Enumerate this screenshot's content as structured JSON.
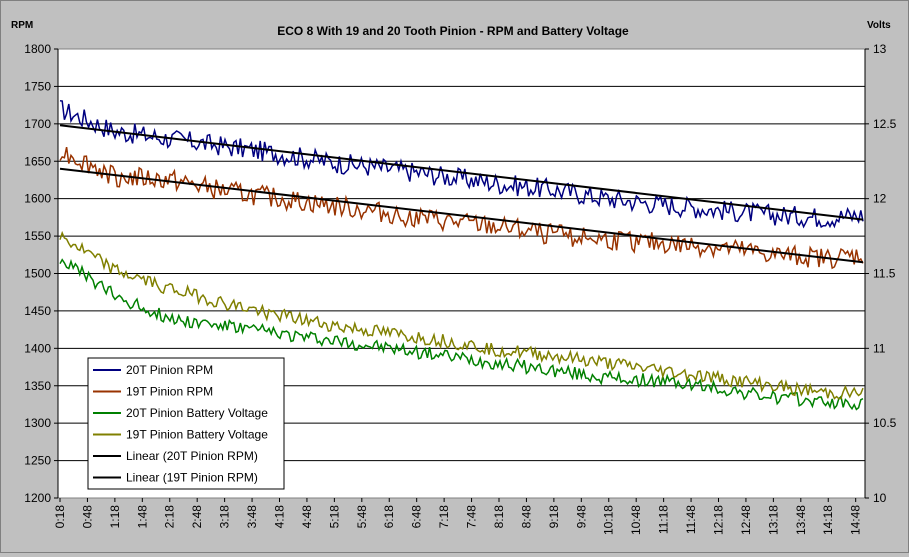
{
  "chart_data": {
    "type": "line",
    "title": "ECO 8 With 19 and 20 Tooth Pinion - RPM and Battery Voltage",
    "y_left_unit": "RPM",
    "y_right_unit": "Volts",
    "y_left_range": [
      1200,
      1800
    ],
    "y_right_range": [
      10,
      13
    ],
    "y_left_ticks": [
      "1200",
      "1250",
      "1300",
      "1350",
      "1400",
      "1450",
      "1500",
      "1550",
      "1600",
      "1650",
      "1700",
      "1750",
      "1800"
    ],
    "y_right_ticks": [
      "10",
      "10.5",
      "11",
      "11.5",
      "12",
      "12.5",
      "13"
    ],
    "x_tick_labels": [
      "0:18",
      "0:48",
      "1:18",
      "1:48",
      "2:18",
      "2:48",
      "3:18",
      "3:48",
      "4:18",
      "4:48",
      "5:18",
      "5:48",
      "6:18",
      "6:48",
      "7:18",
      "7:48",
      "8:18",
      "8:48",
      "9:18",
      "9:48",
      "10:18",
      "10:48",
      "11:18",
      "11:48",
      "12:18",
      "12:48",
      "13:18",
      "13:48",
      "14:18",
      "14:48"
    ],
    "gridlines": "horizontal",
    "legend_position": "bottom-left, inside plot",
    "legend_entries": [
      "20T Pinion RPM",
      "19T Pinion RPM",
      "20T Pinion Battery Voltage",
      "19T Pinion Battery Voltage",
      "Linear (20T Pinion RPM)",
      "Linear (19T Pinion RPM)"
    ],
    "series_colors": [
      "#000080",
      "#993300",
      "#008000",
      "#808000",
      "#000000",
      "#000000"
    ],
    "series": [
      {
        "name": "20T Pinion RPM",
        "axis": "left",
        "x": [
          "0:18",
          "1:18",
          "2:18",
          "3:18",
          "4:18",
          "5:18",
          "6:18",
          "7:18",
          "8:18",
          "9:18",
          "10:18",
          "11:18",
          "12:18",
          "13:18",
          "14:18",
          "14:56"
        ],
        "values": [
          1720,
          1690,
          1680,
          1670,
          1660,
          1648,
          1640,
          1630,
          1620,
          1612,
          1600,
          1592,
          1585,
          1578,
          1575,
          1578
        ]
      },
      {
        "name": "19T Pinion RPM",
        "axis": "left",
        "x": [
          "0:18",
          "1:18",
          "2:18",
          "3:18",
          "4:18",
          "5:18",
          "6:18",
          "7:18",
          "8:18",
          "9:18",
          "10:18",
          "11:18",
          "12:18",
          "13:18",
          "14:18",
          "14:56"
        ],
        "values": [
          1665,
          1630,
          1625,
          1610,
          1600,
          1590,
          1580,
          1570,
          1562,
          1552,
          1545,
          1540,
          1535,
          1525,
          1520,
          1525
        ]
      },
      {
        "name": "20T Pinion Battery Voltage",
        "axis": "right",
        "x": [
          "0:18",
          "1:18",
          "2:18",
          "3:18",
          "4:18",
          "5:18",
          "6:18",
          "7:18",
          "8:18",
          "9:18",
          "10:18",
          "11:18",
          "12:18",
          "13:18",
          "14:18",
          "14:56"
        ],
        "values": [
          11.6,
          11.35,
          11.2,
          11.15,
          11.1,
          11.05,
          11.0,
          10.95,
          10.9,
          10.85,
          10.8,
          10.78,
          10.73,
          10.67,
          10.64,
          10.62
        ]
      },
      {
        "name": "19T Pinion Battery Voltage",
        "axis": "right",
        "x": [
          "0:18",
          "1:18",
          "2:18",
          "3:18",
          "4:18",
          "5:18",
          "6:18",
          "7:18",
          "8:18",
          "9:18",
          "10:18",
          "11:18",
          "12:18",
          "13:18",
          "14:18",
          "14:56"
        ],
        "values": [
          11.75,
          11.52,
          11.4,
          11.3,
          11.22,
          11.15,
          11.1,
          11.05,
          10.99,
          10.95,
          10.9,
          10.85,
          10.8,
          10.75,
          10.7,
          10.7
        ]
      },
      {
        "name": "Linear (20T Pinion RPM)",
        "axis": "left",
        "x": [
          "0:18",
          "14:56"
        ],
        "values": [
          1698,
          1572
        ]
      },
      {
        "name": "Linear (19T Pinion RPM)",
        "axis": "left",
        "x": [
          "0:18",
          "14:56"
        ],
        "values": [
          1640,
          1515
        ]
      }
    ]
  }
}
